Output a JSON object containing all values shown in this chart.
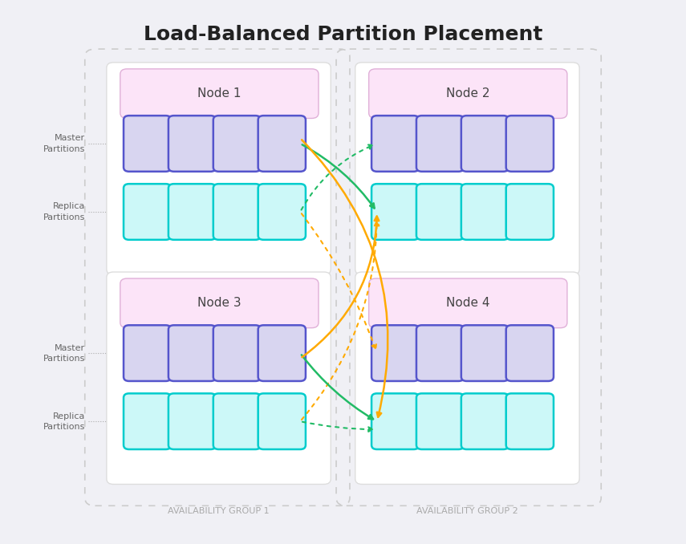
{
  "title": "Load-Balanced Partition Placement",
  "background_color": "#f0f0f5",
  "node_bg": "#fce4f8",
  "node_border": "#e0b0d8",
  "master_fill": "#d8d5f0",
  "master_border": "#5555cc",
  "replica_fill": "#ccf8f8",
  "replica_border": "#00cccc",
  "white_panel": "#ffffff",
  "arrow_green": "#22bb66",
  "arrow_orange": "#ffaa00",
  "label_color": "#666666",
  "group_label_color": "#aaaaaa",
  "group1_label": "AVAILABILITY GROUP 1",
  "group2_label": "AVAILABILITY GROUP 2"
}
